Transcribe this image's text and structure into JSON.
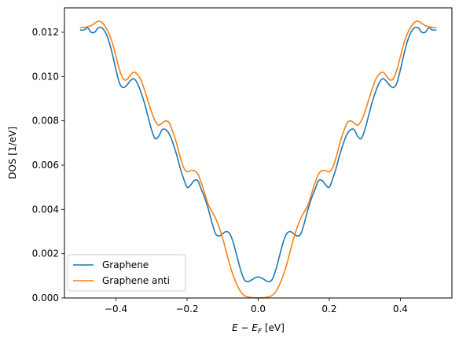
{
  "chart_data": {
    "type": "line",
    "title": "",
    "xlabel": "E − E",
    "xlabel_sub": "F",
    "xlabel_unit": " [eV]",
    "ylabel": "DOS [1/eV]",
    "xlim": [
      -0.545,
      0.545
    ],
    "ylim": [
      0.0,
      0.0131
    ],
    "x_ticks": [
      -0.4,
      -0.2,
      0.0,
      0.2,
      0.4
    ],
    "x_tick_labels": [
      "−0.4",
      "−0.2",
      "0.0",
      "0.2",
      "0.4"
    ],
    "y_ticks": [
      0.0,
      0.002,
      0.004,
      0.006,
      0.008,
      0.01,
      0.012
    ],
    "y_tick_labels": [
      "0.000",
      "0.002",
      "0.004",
      "0.006",
      "0.008",
      "0.010",
      "0.012"
    ],
    "grid": false,
    "legend_position": "lower-left",
    "x": [
      0.0,
      0.01,
      0.02,
      0.03,
      0.04,
      0.05,
      0.06,
      0.07,
      0.08,
      0.09,
      0.1,
      0.11,
      0.12,
      0.13,
      0.14,
      0.15,
      0.16,
      0.17,
      0.18,
      0.19,
      0.2,
      0.21,
      0.22,
      0.23,
      0.24,
      0.25,
      0.26,
      0.27,
      0.28,
      0.29,
      0.3,
      0.31,
      0.32,
      0.33,
      0.34,
      0.35,
      0.36,
      0.37,
      0.38,
      0.39,
      0.4,
      0.41,
      0.42,
      0.43,
      0.44,
      0.45,
      0.46,
      0.47,
      0.48,
      0.49,
      0.5
    ],
    "x_symmetric": true,
    "series": [
      {
        "name": "Graphene",
        "color": "#1f77b4",
        "values": [
          0.00095,
          0.0009,
          0.0008,
          0.00073,
          0.00085,
          0.0013,
          0.0019,
          0.0025,
          0.0029,
          0.003,
          0.0029,
          0.0028,
          0.0029,
          0.0034,
          0.004,
          0.0045,
          0.0049,
          0.0053,
          0.0053,
          0.0051,
          0.005,
          0.0054,
          0.0059,
          0.0065,
          0.007,
          0.0074,
          0.0076,
          0.0076,
          0.0073,
          0.0072,
          0.0076,
          0.0082,
          0.0088,
          0.0093,
          0.0097,
          0.0099,
          0.0098,
          0.0096,
          0.0095,
          0.0097,
          0.0103,
          0.011,
          0.0116,
          0.012,
          0.0122,
          0.0122,
          0.012,
          0.012,
          0.0122,
          0.0121,
          0.0121
        ]
      },
      {
        "name": "Graphene anti",
        "color": "#ff7f0e",
        "values": [
          0.0,
          1e-05,
          2e-05,
          5e-05,
          0.00012,
          0.0003,
          0.0006,
          0.001,
          0.0015,
          0.0021,
          0.0027,
          0.0032,
          0.0036,
          0.0039,
          0.0042,
          0.0047,
          0.0052,
          0.0056,
          0.00575,
          0.00575,
          0.0057,
          0.0059,
          0.0064,
          0.007,
          0.0075,
          0.0079,
          0.008,
          0.0079,
          0.0078,
          0.008,
          0.0084,
          0.0089,
          0.0094,
          0.00985,
          0.0101,
          0.0102,
          0.01005,
          0.00985,
          0.0099,
          0.0103,
          0.0109,
          0.0115,
          0.01195,
          0.01225,
          0.01245,
          0.0125,
          0.0124,
          0.0123,
          0.01225,
          0.01222,
          0.0122
        ]
      }
    ]
  }
}
